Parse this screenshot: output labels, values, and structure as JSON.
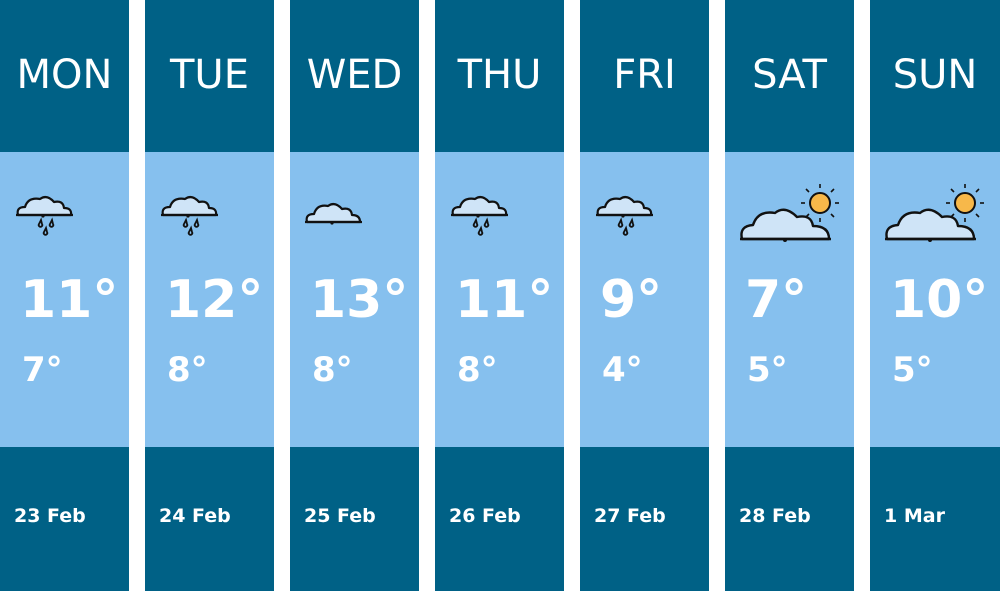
{
  "colors": {
    "header": "#006186",
    "body": "#86c0ee",
    "text": "#ffffff",
    "sun": "#f7b84a",
    "cloud": "#cfe4f7"
  },
  "days": [
    {
      "day": "MON",
      "icon": "rain-cloud-icon",
      "high": "11°",
      "low": "7°",
      "date": "23 Feb"
    },
    {
      "day": "TUE",
      "icon": "rain-cloud-icon",
      "high": "12°",
      "low": "8°",
      "date": "24 Feb"
    },
    {
      "day": "WED",
      "icon": "cloud-icon",
      "high": "13°",
      "low": "8°",
      "date": "25 Feb"
    },
    {
      "day": "THU",
      "icon": "rain-cloud-icon",
      "high": "11°",
      "low": "8°",
      "date": "26 Feb"
    },
    {
      "day": "FRI",
      "icon": "rain-cloud-icon",
      "high": "9°",
      "low": "4°",
      "date": "27 Feb"
    },
    {
      "day": "SAT",
      "icon": "sun-cloud-icon",
      "high": "7°",
      "low": "5°",
      "date": "28 Feb"
    },
    {
      "day": "SUN",
      "icon": "sun-cloud-icon",
      "high": "10°",
      "low": "5°",
      "date": "1 Mar"
    }
  ]
}
